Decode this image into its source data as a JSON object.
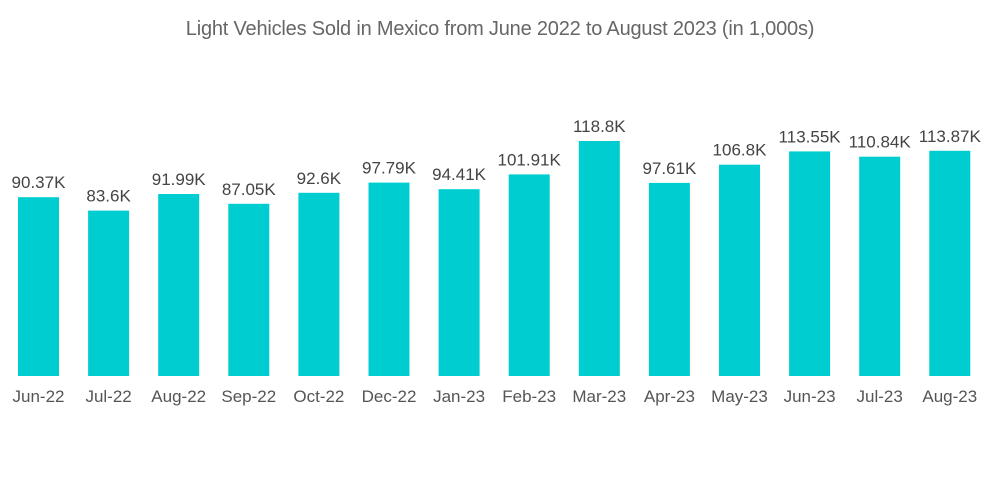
{
  "chart_data": {
    "type": "bar",
    "title": "Light Vehicles Sold in Mexico from June 2022 to August 2023 (in 1,000s)",
    "xlabel": "",
    "ylabel": "",
    "categories": [
      "Jun-22",
      "Jul-22",
      "Aug-22",
      "Sep-22",
      "Oct-22",
      "Dec-22",
      "Jan-23",
      "Feb-23",
      "Mar-23",
      "Apr-23",
      "May-23",
      "Jun-23",
      "Jul-23",
      "Aug-23"
    ],
    "values": [
      90.37,
      83.6,
      91.99,
      87.05,
      92.6,
      97.79,
      94.41,
      101.91,
      118.8,
      97.61,
      106.8,
      113.55,
      110.84,
      113.87
    ],
    "data_labels": [
      "90.37K",
      "83.6K",
      "91.99K",
      "87.05K",
      "92.6K",
      "97.79K",
      "94.41K",
      "101.91K",
      "118.8K",
      "97.61K",
      "106.8K",
      "113.55K",
      "110.84K",
      "113.87K"
    ],
    "ylim": [
      0,
      118.8
    ],
    "grid": false,
    "legend": "none",
    "bar_color": "#00CDD0"
  }
}
